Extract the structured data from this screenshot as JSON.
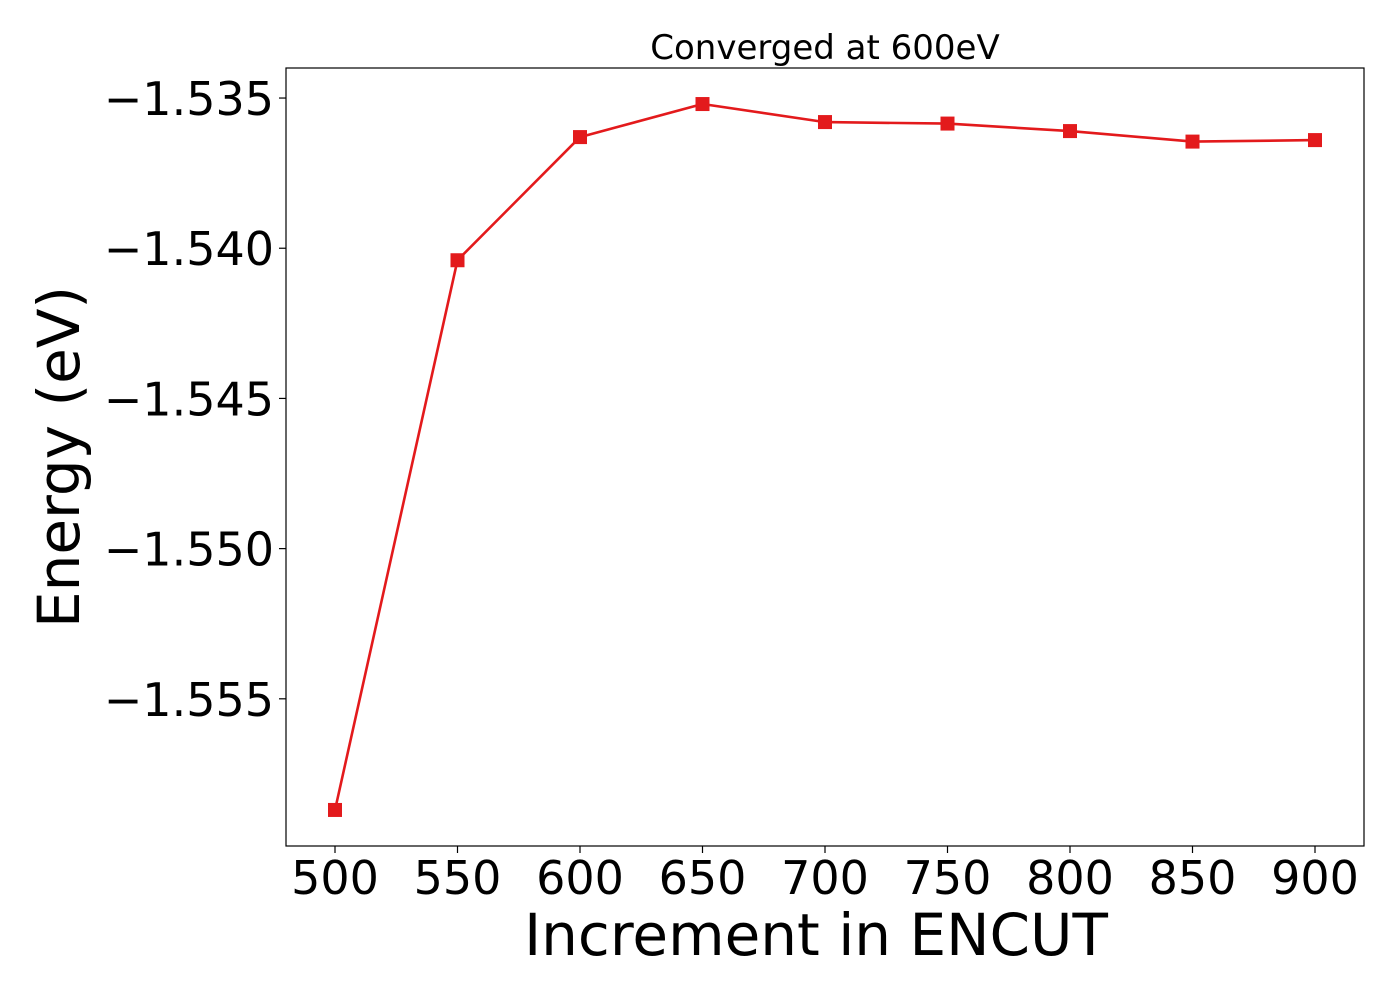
{
  "chart_data": {
    "type": "line",
    "title": "Converged at 600eV",
    "xlabel": "Increment in ENCUT",
    "ylabel": "Energy (eV)",
    "x": [
      500,
      550,
      600,
      650,
      700,
      750,
      800,
      850,
      900
    ],
    "series": [
      {
        "values": [
          -1.5587,
          -1.5404,
          -1.5363,
          -1.5352,
          -1.5358,
          -1.53585,
          -1.5361,
          -1.53645,
          -1.5364
        ],
        "color": "#e31a1c",
        "marker": "square"
      }
    ],
    "xticks": [
      500,
      550,
      600,
      650,
      700,
      750,
      800,
      850,
      900
    ],
    "xtick_labels": [
      "500",
      "550",
      "600",
      "650",
      "700",
      "750",
      "800",
      "850",
      "900"
    ],
    "yticks": [
      -1.535,
      -1.54,
      -1.545,
      -1.55,
      -1.555
    ],
    "ytick_labels": [
      "−1.535",
      "−1.540",
      "−1.545",
      "−1.550",
      "−1.555"
    ],
    "xlim": [
      480,
      920
    ],
    "ylim": [
      -1.5599,
      -1.534
    ],
    "grid": false,
    "legend": false
  }
}
